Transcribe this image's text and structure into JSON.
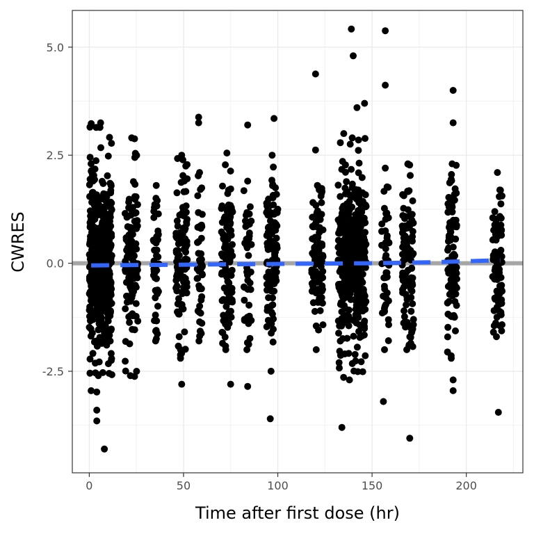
{
  "chart_data": {
    "type": "scatter",
    "xlabel": "Time after first dose (hr)",
    "ylabel": "CWRES",
    "xlim": [
      -9,
      230
    ],
    "ylim": [
      -4.85,
      5.85
    ],
    "x_ticks": [
      0,
      50,
      100,
      150,
      200
    ],
    "x_tick_labels": [
      "0",
      "50",
      "100",
      "150",
      "200"
    ],
    "y_ticks": [
      -2.5,
      0,
      2.5,
      5
    ],
    "y_tick_labels": [
      "-2.5",
      "0.0",
      "2.5",
      "5.0"
    ],
    "grid": true,
    "reference_line": {
      "y": 0,
      "color": "#a6a6a6"
    },
    "smooth_line": {
      "color": "#3366ff",
      "style": "dashed",
      "points": [
        [
          1,
          -0.05
        ],
        [
          30,
          -0.04
        ],
        [
          60,
          -0.03
        ],
        [
          90,
          -0.02
        ],
        [
          120,
          -0.01
        ],
        [
          150,
          0.0
        ],
        [
          180,
          0.02
        ],
        [
          218,
          0.07
        ]
      ]
    },
    "point_color": "#000000",
    "clusters": [
      {
        "x0": 0,
        "x1": 12,
        "n": 520,
        "sd": 1.05,
        "ymin": -2.6,
        "ymax": 3.25
      },
      {
        "x0": 19,
        "x1": 26,
        "n": 110,
        "sd": 1.0,
        "ymin": -2.6,
        "ymax": 2.9
      },
      {
        "x0": 34,
        "x1": 37,
        "n": 45,
        "sd": 0.9,
        "ymin": -1.8,
        "ymax": 1.8
      },
      {
        "x0": 46,
        "x1": 52,
        "n": 110,
        "sd": 1.0,
        "ymin": -2.2,
        "ymax": 2.5
      },
      {
        "x0": 57,
        "x1": 60,
        "n": 45,
        "sd": 1.0,
        "ymin": -1.8,
        "ymax": 2.1
      },
      {
        "x0": 70,
        "x1": 76,
        "n": 110,
        "sd": 1.0,
        "ymin": -2.0,
        "ymax": 2.55
      },
      {
        "x0": 82,
        "x1": 86,
        "n": 45,
        "sd": 0.9,
        "ymin": -2.0,
        "ymax": 1.9
      },
      {
        "x0": 94,
        "x1": 100,
        "n": 110,
        "sd": 1.0,
        "ymin": -2.5,
        "ymax": 2.5
      },
      {
        "x0": 118,
        "x1": 124,
        "n": 110,
        "sd": 1.0,
        "ymin": -2.0,
        "ymax": 1.8
      },
      {
        "x0": 132,
        "x1": 147,
        "n": 400,
        "sd": 1.05,
        "ymin": -2.7,
        "ymax": 2.9
      },
      {
        "x0": 155,
        "x1": 159,
        "n": 45,
        "sd": 1.0,
        "ymin": -2.0,
        "ymax": 2.2
      },
      {
        "x0": 166,
        "x1": 172,
        "n": 110,
        "sd": 1.0,
        "ymin": -2.0,
        "ymax": 2.3
      },
      {
        "x0": 190,
        "x1": 195,
        "n": 90,
        "sd": 1.0,
        "ymin": -2.2,
        "ymax": 2.3
      },
      {
        "x0": 214,
        "x1": 219,
        "n": 90,
        "sd": 1.0,
        "ymin": -1.7,
        "ymax": 2.1
      }
    ],
    "outliers": [
      [
        1,
        -2.95
      ],
      [
        4,
        -2.98
      ],
      [
        4,
        -3.4
      ],
      [
        4,
        -3.65
      ],
      [
        8,
        -4.3
      ],
      [
        12,
        -2.58
      ],
      [
        24,
        2.88
      ],
      [
        24,
        -2.62
      ],
      [
        49,
        -2.8
      ],
      [
        58,
        3.38
      ],
      [
        58,
        3.25
      ],
      [
        75,
        -2.8
      ],
      [
        84,
        3.2
      ],
      [
        84,
        -2.85
      ],
      [
        98,
        3.35
      ],
      [
        96,
        -3.6
      ],
      [
        120,
        4.38
      ],
      [
        120,
        2.62
      ],
      [
        134,
        -3.8
      ],
      [
        135,
        3.0
      ],
      [
        139,
        5.42
      ],
      [
        140,
        4.8
      ],
      [
        142,
        3.6
      ],
      [
        146,
        3.7
      ],
      [
        157,
        5.38
      ],
      [
        157,
        4.12
      ],
      [
        156,
        -3.2
      ],
      [
        170,
        -4.05
      ],
      [
        193,
        4.0
      ],
      [
        193,
        3.25
      ],
      [
        193,
        -2.95
      ],
      [
        193,
        -2.7
      ],
      [
        217,
        -3.45
      ]
    ]
  }
}
